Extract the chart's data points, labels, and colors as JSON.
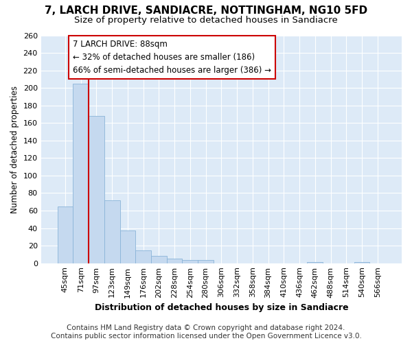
{
  "title": "7, LARCH DRIVE, SANDIACRE, NOTTINGHAM, NG10 5FD",
  "subtitle": "Size of property relative to detached houses in Sandiacre",
  "xlabel": "Distribution of detached houses by size in Sandiacre",
  "ylabel": "Number of detached properties",
  "categories": [
    "45sqm",
    "71sqm",
    "97sqm",
    "123sqm",
    "149sqm",
    "176sqm",
    "202sqm",
    "228sqm",
    "254sqm",
    "280sqm",
    "306sqm",
    "332sqm",
    "358sqm",
    "384sqm",
    "410sqm",
    "436sqm",
    "462sqm",
    "488sqm",
    "514sqm",
    "540sqm",
    "566sqm"
  ],
  "values": [
    65,
    205,
    168,
    72,
    37,
    15,
    8,
    5,
    4,
    4,
    0,
    0,
    0,
    0,
    0,
    0,
    1,
    0,
    0,
    1,
    0
  ],
  "bar_color": "#c5d9ef",
  "bar_edge_color": "#8ab4d8",
  "annotation_text": "7 LARCH DRIVE: 88sqm\n← 32% of detached houses are smaller (186)\n66% of semi-detached houses are larger (386) →",
  "annotation_box_color": "#ffffff",
  "annotation_box_edge": "#cc0000",
  "vline_color": "#cc0000",
  "ylim": [
    0,
    260
  ],
  "yticks": [
    0,
    20,
    40,
    60,
    80,
    100,
    120,
    140,
    160,
    180,
    200,
    220,
    240,
    260
  ],
  "bg_color": "#ddeaf7",
  "fig_color": "#ffffff",
  "footnote": "Contains HM Land Registry data © Crown copyright and database right 2024.\nContains public sector information licensed under the Open Government Licence v3.0.",
  "title_fontsize": 11,
  "subtitle_fontsize": 9.5,
  "xlabel_fontsize": 9,
  "ylabel_fontsize": 8.5,
  "tick_fontsize": 8,
  "annot_fontsize": 8.5,
  "footnote_fontsize": 7.5
}
